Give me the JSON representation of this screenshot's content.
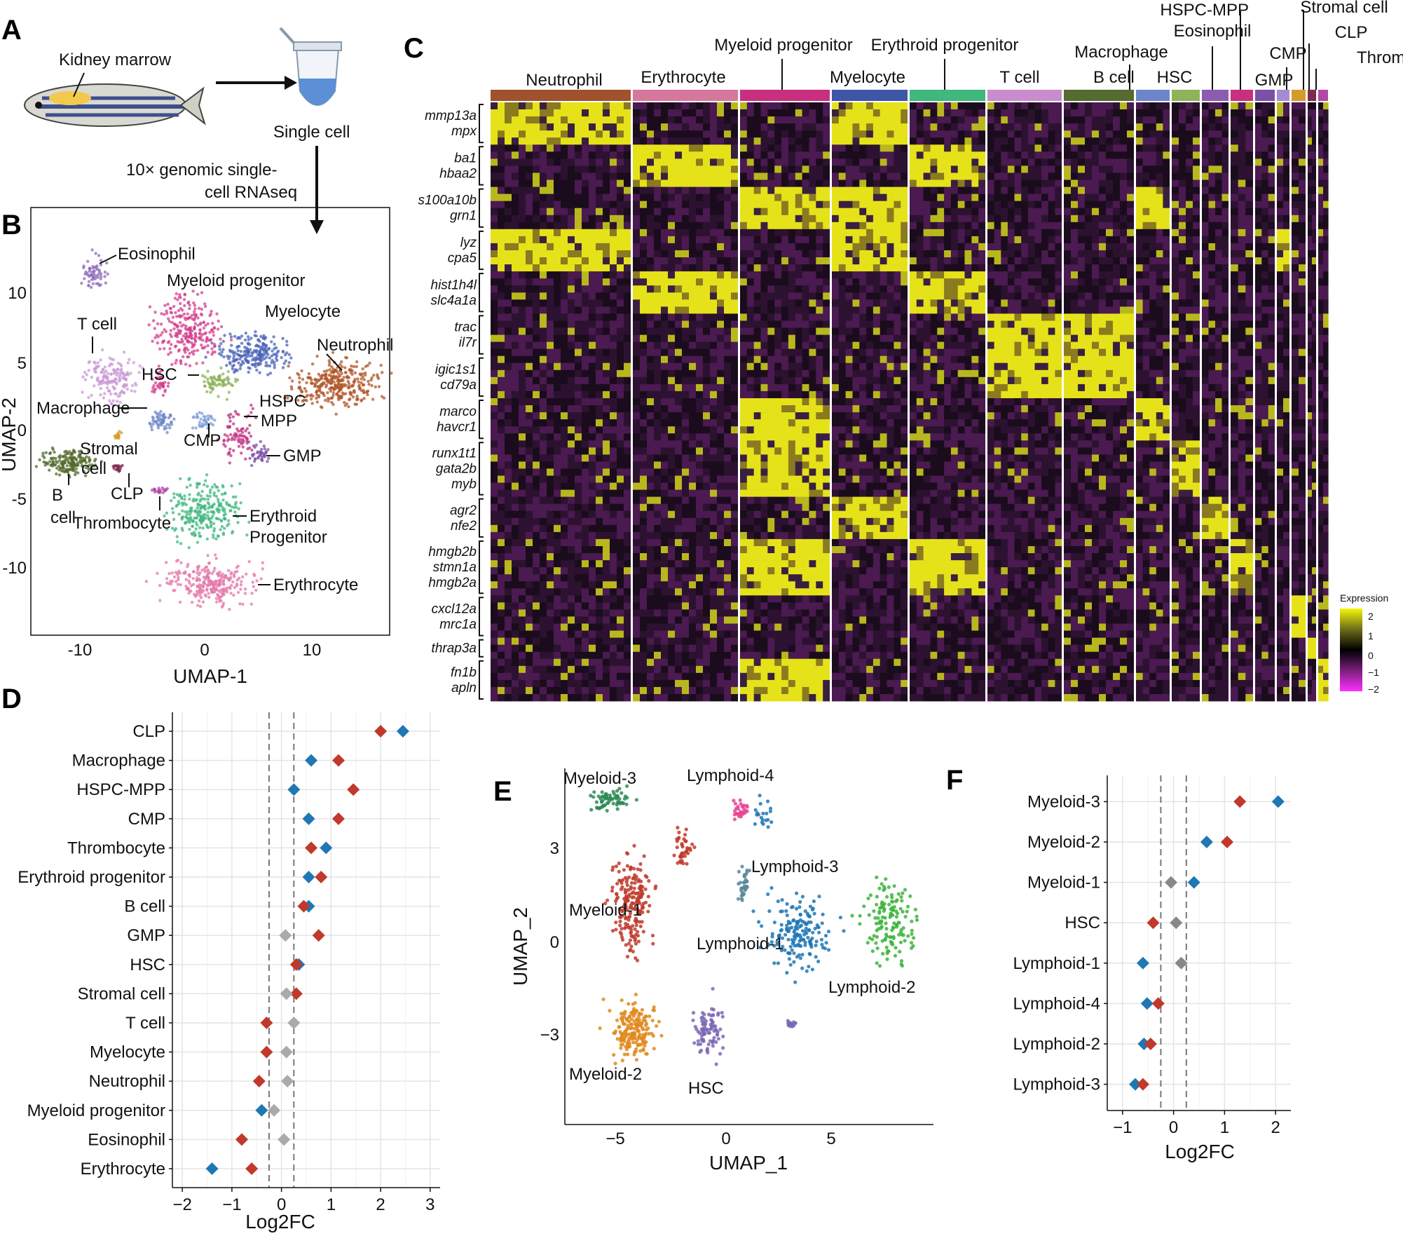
{
  "panelA": {
    "label": "A",
    "kidney_text": "Kidney marrow",
    "single_cell_text": "Single cell",
    "method_line1": "10× genomic single-",
    "method_line2": "cell RNAseq"
  },
  "panelB": {
    "label": "B",
    "xlabel": "UMAP-1",
    "ylabel": "UMAP-2",
    "xticks": [
      "-10",
      "0",
      "10"
    ],
    "yticks": [
      "10",
      "5",
      "0",
      "-5",
      "-10"
    ],
    "annotations": [
      "Eosinophil",
      "Myeloid progenitor",
      "T cell",
      "Myelocyte",
      "Neutrophil",
      "HSC",
      "Macrophage",
      "HSPC",
      "MPP",
      "CMP",
      "Stromal",
      "cell",
      "GMP",
      "CLP",
      "B",
      "cell",
      "Thrombocyte",
      "Erythroid",
      "Progenitor",
      "Erythrocyte"
    ]
  },
  "panelC": {
    "label": "C",
    "clusters": [
      {
        "name": "Neutrophil",
        "color": "#a0522d"
      },
      {
        "name": "Erythrocyte",
        "color": "#d6779c"
      },
      {
        "name": "Myeloid progenitor",
        "color": "#c8307f"
      },
      {
        "name": "Myelocyte",
        "color": "#3f55a6"
      },
      {
        "name": "Erythroid progenitor",
        "color": "#3fb77d"
      },
      {
        "name": "T cell",
        "color": "#c98ccc"
      },
      {
        "name": "B cell",
        "color": "#556b2f"
      },
      {
        "name": "Macrophage",
        "color": "#6d86c9"
      },
      {
        "name": "HSC",
        "color": "#8fb25a"
      },
      {
        "name": "Eosinophil",
        "color": "#8d5cb0"
      },
      {
        "name": "HSPC-MPP",
        "color": "#c8307f"
      },
      {
        "name": "GMP",
        "color": "#7b50a6"
      },
      {
        "name": "CMP",
        "color": "#a68bd1"
      },
      {
        "name": "Stromal cell",
        "color": "#d49a2a"
      },
      {
        "name": "CLP",
        "color": "#7c2a50"
      },
      {
        "name": "Thrombocyte",
        "color": "#b04aa6"
      }
    ],
    "gene_groups": [
      [
        "mmp13a",
        "mpx"
      ],
      [
        "ba1",
        "hbaa2"
      ],
      [
        "s100a10b",
        "grn1"
      ],
      [
        "lyz",
        "cpa5"
      ],
      [
        "hist1h4l",
        "slc4a1a"
      ],
      [
        "trac",
        "il7r"
      ],
      [
        "igic1s1",
        "cd79a"
      ],
      [
        "marco",
        "havcr1"
      ],
      [
        "runx1t1",
        "gata2b",
        "myb"
      ],
      [
        "agr2",
        "nfe2"
      ],
      [
        "hmgb2b",
        "stmn1a",
        "hmgb2a"
      ],
      [
        "cxcl12a",
        "mrc1a"
      ],
      [
        "thrap3a"
      ],
      [
        "fn1b",
        "apln"
      ]
    ],
    "legend": {
      "title": "Expression",
      "ticks": [
        "2",
        "1",
        "0",
        "−1",
        "−2"
      ]
    }
  },
  "panelD": {
    "label": "D",
    "xlabel": "Log2FC",
    "chart_data": {
      "type": "scatter",
      "categories": [
        "CLP",
        "Macrophage",
        "HSPC-MPP",
        "CMP",
        "Thrombocyte",
        "Erythroid progenitor",
        "B cell",
        "GMP",
        "HSC",
        "Stromal cell",
        "T cell",
        "Myelocyte",
        "Neutrophil",
        "Myeloid progenitor",
        "Eosinophil",
        "Erythrocyte"
      ],
      "series": [
        {
          "color": "#1f77b4",
          "values": [
            2.45,
            0.6,
            0.25,
            0.55,
            0.9,
            0.55,
            0.55,
            null,
            0.35,
            null,
            null,
            null,
            null,
            -0.4,
            null,
            -1.4
          ]
        },
        {
          "color": "#c0392b",
          "values": [
            2.0,
            1.15,
            1.45,
            1.15,
            0.6,
            0.8,
            0.45,
            0.75,
            0.3,
            0.3,
            -0.3,
            -0.3,
            -0.45,
            null,
            -0.8,
            -0.6
          ]
        },
        {
          "color": "#aaaaaa",
          "values": [
            null,
            null,
            null,
            null,
            null,
            null,
            null,
            0.08,
            null,
            0.1,
            0.25,
            0.1,
            0.12,
            -0.15,
            0.05,
            null
          ]
        }
      ],
      "xlim": [
        -2.2,
        3.2
      ],
      "xticks": [
        "−2",
        "−1",
        "0",
        "1",
        "2",
        "3"
      ],
      "vlines": [
        -0.25,
        0.25
      ]
    }
  },
  "panelE": {
    "label": "E",
    "xlabel": "UMAP_1",
    "ylabel": "UMAP_2",
    "xticks": [
      "−5",
      "0",
      "5"
    ],
    "yticks": [
      "3",
      "0",
      "−3"
    ],
    "annotations": [
      "Myeloid-3",
      "Lymphoid-4",
      "Lymphoid-3",
      "Myeloid-1",
      "Lymphoid-1",
      "Lymphoid-2",
      "Myeloid-2",
      "HSC"
    ]
  },
  "panelF": {
    "label": "F",
    "xlabel": "Log2FC",
    "chart_data": {
      "type": "scatter",
      "categories": [
        "Myeloid-3",
        "Myeloid-2",
        "Myeloid-1",
        "HSC",
        "Lymphoid-1",
        "Lymphoid-4",
        "Lymphoid-2",
        "Lymphoid-3"
      ],
      "series": [
        {
          "color": "#1f77b4",
          "values": [
            2.05,
            0.65,
            0.4,
            null,
            -0.6,
            -0.52,
            -0.58,
            -0.75
          ]
        },
        {
          "color": "#c0392b",
          "values": [
            1.3,
            1.05,
            null,
            -0.4,
            null,
            -0.3,
            -0.45,
            -0.6
          ]
        },
        {
          "color": "#888888",
          "values": [
            null,
            null,
            -0.05,
            0.05,
            0.15,
            null,
            null,
            null
          ]
        }
      ],
      "xlim": [
        -1.3,
        2.3
      ],
      "xticks": [
        "−1",
        "0",
        "1",
        "2"
      ],
      "vlines": [
        -0.25,
        0.25
      ]
    }
  }
}
